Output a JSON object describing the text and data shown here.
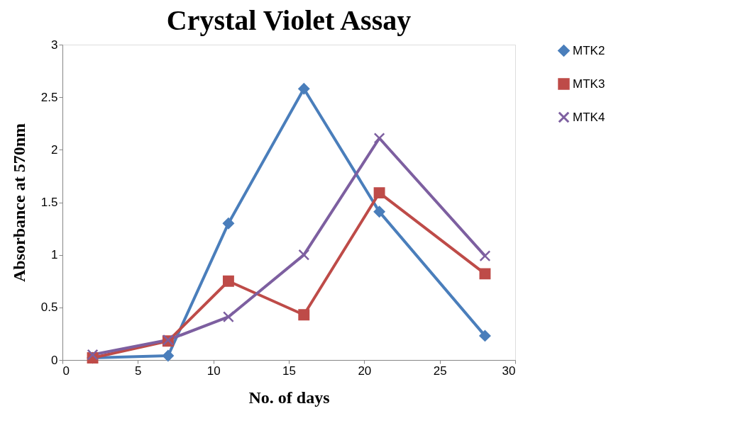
{
  "chart_data": {
    "type": "line",
    "title": "Crystal Violet Assay",
    "xlabel": "No. of days",
    "ylabel": "Absorbance at 570nm",
    "x": [
      2,
      7,
      11,
      16,
      21,
      28
    ],
    "series": [
      {
        "name": "MTK2",
        "color": "#4a7ebb",
        "marker": "diamond",
        "values": [
          0.02,
          0.04,
          1.3,
          2.58,
          1.41,
          0.23
        ]
      },
      {
        "name": "MTK3",
        "color": "#be4b48",
        "marker": "square",
        "values": [
          0.02,
          0.18,
          0.75,
          0.43,
          1.59,
          0.82
        ]
      },
      {
        "name": "MTK4",
        "color": "#7d5fa0",
        "marker": "cross",
        "values": [
          0.05,
          0.19,
          0.41,
          1.0,
          2.11,
          0.99
        ]
      }
    ],
    "xlim": [
      0,
      30
    ],
    "xticks": [
      0,
      5,
      10,
      15,
      20,
      25,
      30
    ],
    "ylim": [
      0,
      3
    ],
    "yticks": [
      0,
      0.5,
      1,
      1.5,
      2,
      2.5,
      3
    ],
    "grid": false,
    "legend": "right",
    "line_style": "solid"
  }
}
